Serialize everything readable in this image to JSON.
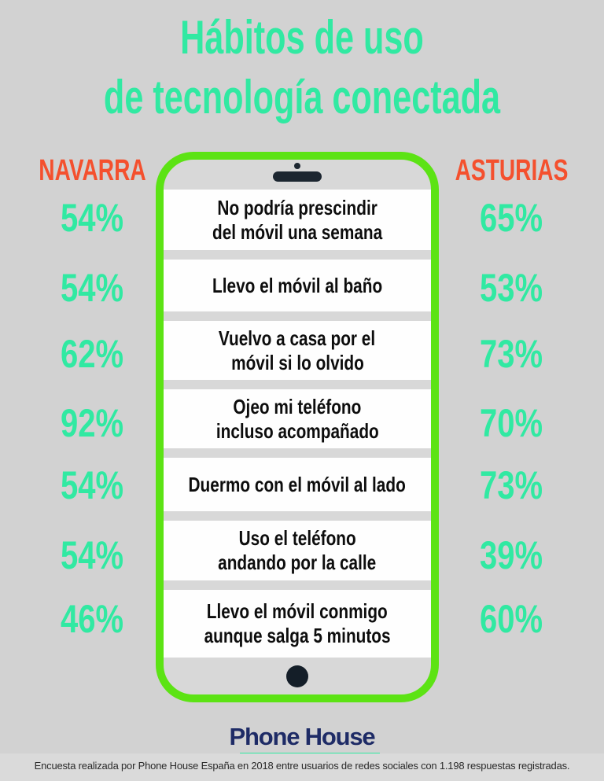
{
  "title": {
    "line1": "Hábitos de uso",
    "line2": "de tecnología conectada"
  },
  "columns": {
    "left": "NAVARRA",
    "right": "ASTURIAS"
  },
  "rows": [
    {
      "navarra": "54%",
      "habit_line1": "No podría prescindir",
      "habit_line2": "del móvil una semana",
      "asturias": "65%"
    },
    {
      "navarra": "54%",
      "habit_line1": "Llevo el móvil al baño",
      "habit_line2": "",
      "asturias": "53%"
    },
    {
      "navarra": "62%",
      "habit_line1": "Vuelvo a casa por el",
      "habit_line2": "móvil si lo olvido",
      "asturias": "73%"
    },
    {
      "navarra": "92%",
      "habit_line1": "Ojeo mi teléfono",
      "habit_line2": "incluso acompañado",
      "asturias": "70%"
    },
    {
      "navarra": "54%",
      "habit_line1": "Duermo con el móvil al lado",
      "habit_line2": "",
      "asturias": "73%"
    },
    {
      "navarra": "54%",
      "habit_line1": "Uso el teléfono",
      "habit_line2": "andando por la calle",
      "asturias": "39%"
    },
    {
      "navarra": "46%",
      "habit_line1": "Llevo el móvil conmigo",
      "habit_line2": "aunque  salga 5 minutos",
      "asturias": "60%"
    }
  ],
  "chart_data": {
    "type": "table",
    "title": "Hábitos de uso de tecnología conectada",
    "categories": [
      "No podría prescindir del móvil una semana",
      "Llevo el móvil al baño",
      "Vuelvo a casa por el móvil si lo olvido",
      "Ojeo mi teléfono incluso acompañado",
      "Duermo con el móvil al lado",
      "Uso el teléfono andando por la calle",
      "Llevo el móvil conmigo aunque salga 5 minutos"
    ],
    "series": [
      {
        "name": "NAVARRA",
        "values": [
          54,
          54,
          62,
          92,
          54,
          54,
          46
        ]
      },
      {
        "name": "ASTURIAS",
        "values": [
          65,
          53,
          73,
          70,
          73,
          39,
          60
        ]
      }
    ],
    "unit": "%"
  },
  "logo": {
    "text": "Phone House"
  },
  "footer": "Encuesta realizada por Phone House España en 2018 entre usuarios de redes sociales con 1.198 respuestas registradas.",
  "colors": {
    "background": "#d2d2d2",
    "mint_accent": "#31e9a2",
    "orange_accent": "#f4502e",
    "phone_border_green": "#5ce314",
    "logo_navy": "#1e2b66",
    "logo_underline_mint": "#2ee9a0",
    "row_white": "#fefefe",
    "habit_text": "#0d0d0d"
  }
}
